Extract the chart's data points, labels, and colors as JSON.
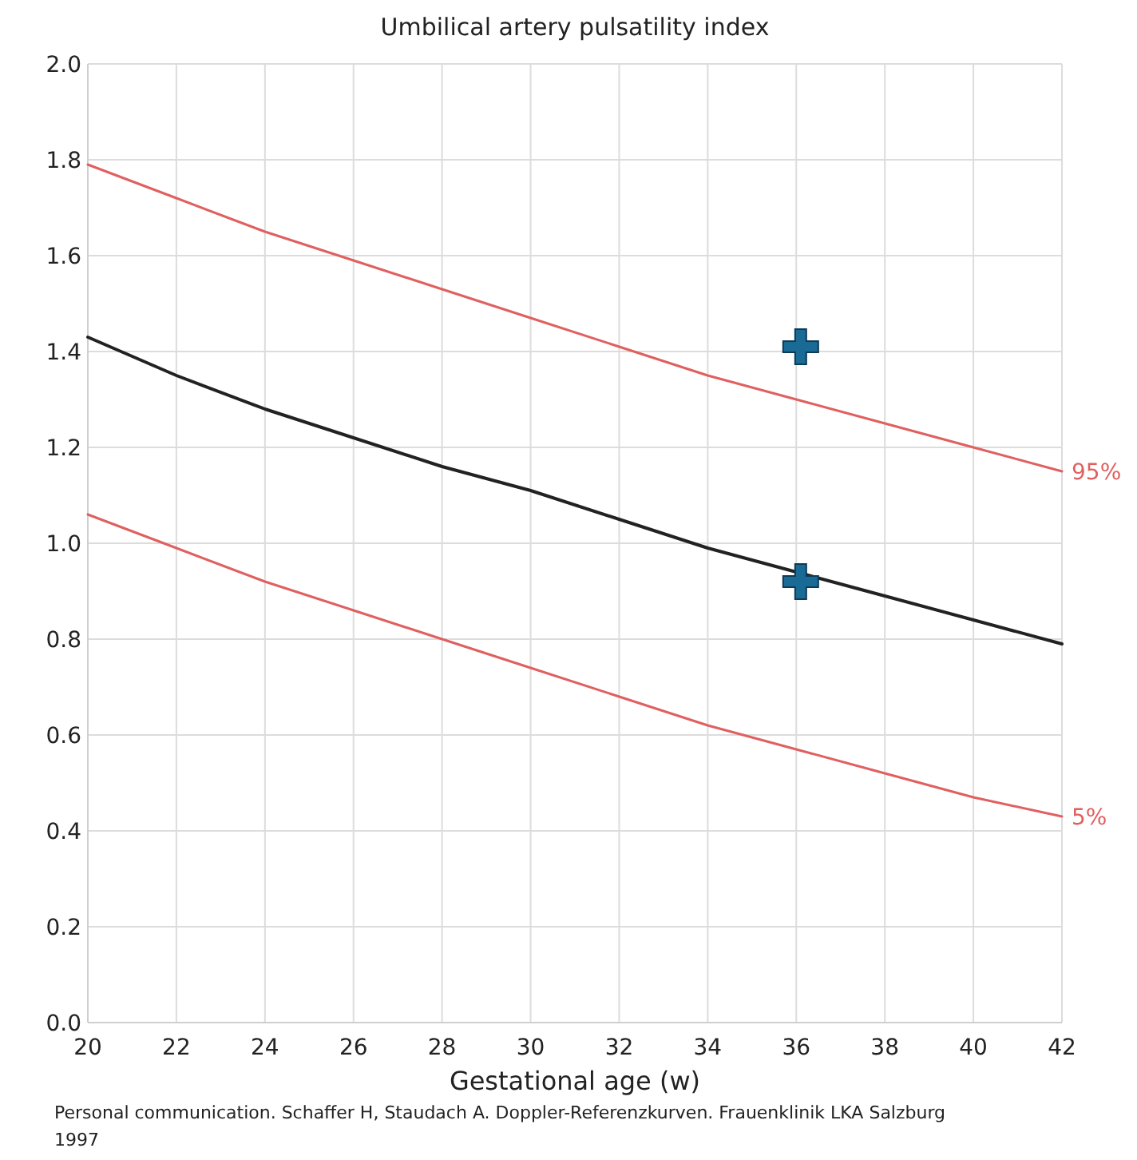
{
  "chart_data": {
    "type": "line",
    "title": "Umbilical artery pulsatility index",
    "xlabel": "Gestational age (w)",
    "x": [
      20,
      22,
      24,
      26,
      28,
      30,
      32,
      34,
      36,
      38,
      40,
      42
    ],
    "series": [
      {
        "name": "95%",
        "color": "#e06060",
        "values": [
          1.79,
          1.72,
          1.65,
          1.59,
          1.53,
          1.47,
          1.41,
          1.35,
          1.3,
          1.25,
          1.2,
          1.15
        ]
      },
      {
        "color": "#222222",
        "values": [
          1.43,
          1.35,
          1.28,
          1.22,
          1.16,
          1.11,
          1.05,
          0.99,
          0.94,
          0.89,
          0.84,
          0.79
        ]
      },
      {
        "name": "5%",
        "color": "#e06060",
        "values": [
          1.06,
          0.99,
          0.92,
          0.86,
          0.8,
          0.74,
          0.68,
          0.62,
          0.57,
          0.52,
          0.47,
          0.43
        ]
      },
      {
        "type": "scatter",
        "marker": "cross",
        "color": "#1a6a96",
        "x": [
          36.1,
          36.1
        ],
        "values": [
          1.41,
          0.92
        ]
      }
    ],
    "xlim": [
      20,
      42
    ],
    "xticks": [
      20,
      22,
      24,
      26,
      28,
      30,
      32,
      34,
      36,
      38,
      40,
      42
    ],
    "ylim": [
      0,
      2
    ],
    "yticks": [
      {
        "value": 0,
        "label": "0.0"
      },
      0.2,
      0.4,
      0.6,
      0.8,
      {
        "value": 1,
        "label": "1.0"
      },
      1.2,
      1.4,
      1.6,
      1.8,
      {
        "value": 2,
        "label": "2.0"
      }
    ],
    "grid": true,
    "annotations": [
      "Personal communication. Schaffer H, Staudach A. Doppler-Referenzkurven. Frauenklinik LKA Salzburg 1997"
    ]
  }
}
